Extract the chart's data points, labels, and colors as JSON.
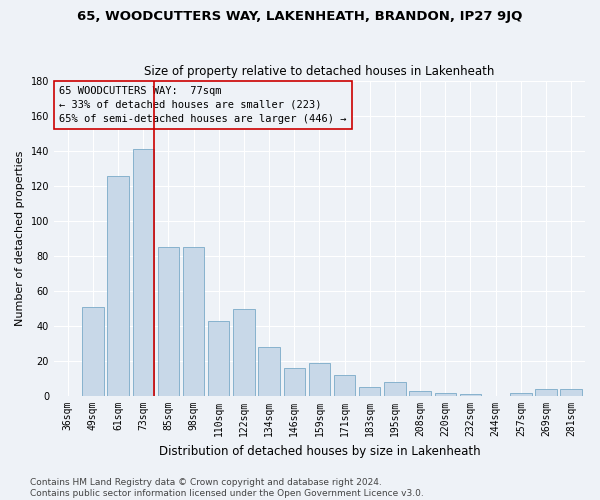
{
  "title": "65, WOODCUTTERS WAY, LAKENHEATH, BRANDON, IP27 9JQ",
  "subtitle": "Size of property relative to detached houses in Lakenheath",
  "xlabel": "Distribution of detached houses by size in Lakenheath",
  "ylabel": "Number of detached properties",
  "categories": [
    "36sqm",
    "49sqm",
    "61sqm",
    "73sqm",
    "85sqm",
    "98sqm",
    "110sqm",
    "122sqm",
    "134sqm",
    "146sqm",
    "159sqm",
    "171sqm",
    "183sqm",
    "195sqm",
    "208sqm",
    "220sqm",
    "232sqm",
    "244sqm",
    "257sqm",
    "269sqm",
    "281sqm"
  ],
  "values": [
    0,
    51,
    126,
    141,
    85,
    85,
    43,
    50,
    28,
    16,
    19,
    12,
    5,
    8,
    3,
    2,
    1,
    0,
    2,
    4,
    4
  ],
  "bar_color": "#c8d8e8",
  "bar_edge_color": "#7aaac8",
  "vline_color": "#cc0000",
  "vline_x_index": 3,
  "bar_width": 0.85,
  "ylim": [
    0,
    180
  ],
  "yticks": [
    0,
    20,
    40,
    60,
    80,
    100,
    120,
    140,
    160,
    180
  ],
  "annotation_line1": "65 WOODCUTTERS WAY:  77sqm",
  "annotation_line2": "← 33% of detached houses are smaller (223)",
  "annotation_line3": "65% of semi-detached houses are larger (446) →",
  "annotation_box_edgecolor": "#cc0000",
  "footer_line1": "Contains HM Land Registry data © Crown copyright and database right 2024.",
  "footer_line2": "Contains public sector information licensed under the Open Government Licence v3.0.",
  "background_color": "#eef2f7",
  "grid_color": "#ffffff",
  "title_fontsize": 9.5,
  "subtitle_fontsize": 8.5,
  "ylabel_fontsize": 8,
  "xlabel_fontsize": 8.5,
  "tick_fontsize": 7,
  "annotation_fontsize": 7.5,
  "footer_fontsize": 6.5
}
